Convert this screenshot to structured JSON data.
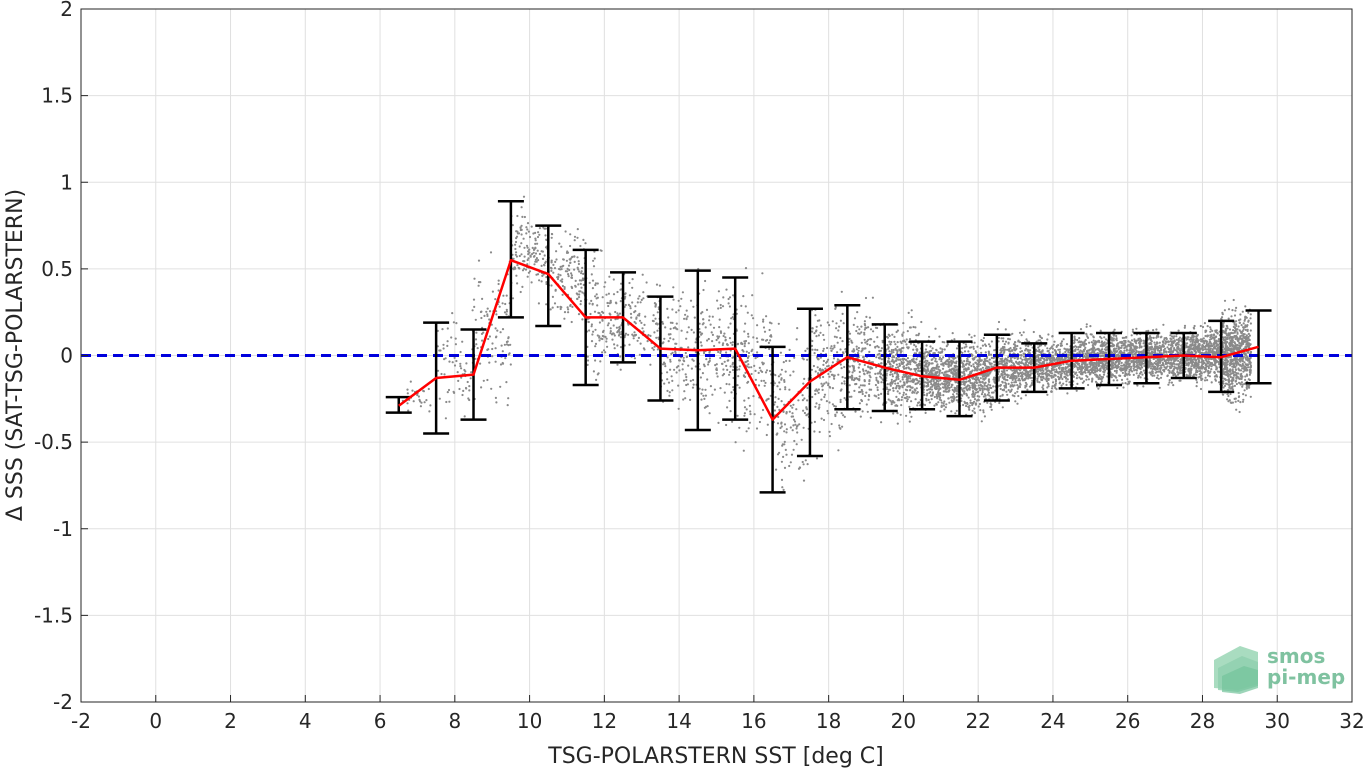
{
  "chart_data": {
    "type": "scatter",
    "xlabel": "TSG-POLARSTERN SST [deg C]",
    "ylabel": "Δ SSS (SAT-TSG-POLARSTERN)",
    "xlim": [
      -2,
      32
    ],
    "ylim": [
      -2,
      2
    ],
    "xticks": [
      -2,
      0,
      2,
      4,
      6,
      8,
      10,
      12,
      14,
      16,
      18,
      20,
      22,
      24,
      26,
      28,
      30,
      32
    ],
    "yticks": [
      -2,
      -1.5,
      -1,
      -0.5,
      0,
      0.5,
      1,
      1.5,
      2
    ],
    "grid": true,
    "reference_line": {
      "y": 0,
      "color": "#0000dd",
      "style": "dashed"
    },
    "series": [
      {
        "kind": "binned-mean-with-errorbars",
        "color": "#ff0000",
        "x": [
          6.5,
          7.5,
          8.5,
          9.5,
          10.5,
          11.5,
          12.5,
          13.5,
          14.5,
          15.5,
          16.5,
          17.5,
          18.5,
          19.5,
          20.5,
          21.5,
          22.5,
          23.5,
          24.5,
          25.5,
          26.5,
          27.5,
          28.5,
          29.5
        ],
        "y": [
          -0.29,
          -0.13,
          -0.11,
          0.55,
          0.47,
          0.22,
          0.22,
          0.04,
          0.03,
          0.04,
          -0.37,
          -0.15,
          -0.01,
          -0.07,
          -0.12,
          -0.14,
          -0.07,
          -0.07,
          -0.03,
          -0.02,
          -0.01,
          0.0,
          -0.01,
          0.05
        ],
        "err_low": [
          -0.33,
          -0.45,
          -0.37,
          0.22,
          0.17,
          -0.17,
          -0.04,
          -0.26,
          -0.43,
          -0.37,
          -0.79,
          -0.58,
          -0.31,
          -0.32,
          -0.31,
          -0.35,
          -0.26,
          -0.21,
          -0.19,
          -0.17,
          -0.16,
          -0.13,
          -0.21,
          -0.16
        ],
        "err_high": [
          -0.24,
          0.19,
          0.15,
          0.89,
          0.75,
          0.61,
          0.48,
          0.34,
          0.49,
          0.45,
          0.05,
          0.27,
          0.29,
          0.18,
          0.08,
          0.08,
          0.12,
          0.07,
          0.13,
          0.13,
          0.13,
          0.13,
          0.2,
          0.26
        ]
      }
    ],
    "scatter_color": "#8a8a8a",
    "scatter_density": [
      {
        "x": [
          6.5,
          7.5
        ],
        "center": -0.25,
        "spread": 0.08,
        "count": 25
      },
      {
        "x": [
          7.5,
          8.5
        ],
        "center": -0.05,
        "spread": 0.25,
        "count": 70
      },
      {
        "x": [
          8.5,
          9.5
        ],
        "center": 0.15,
        "spread": 0.35,
        "count": 110
      },
      {
        "x": [
          9.5,
          10.5
        ],
        "center": 0.6,
        "spread": 0.22,
        "count": 150
      },
      {
        "x": [
          10.5,
          11.5
        ],
        "center": 0.45,
        "spread": 0.22,
        "count": 150
      },
      {
        "x": [
          11.5,
          12.5
        ],
        "center": 0.2,
        "spread": 0.3,
        "count": 150
      },
      {
        "x": [
          12.5,
          13.5
        ],
        "center": 0.2,
        "spread": 0.2,
        "count": 110
      },
      {
        "x": [
          13.5,
          14.5
        ],
        "center": 0.05,
        "spread": 0.28,
        "count": 130
      },
      {
        "x": [
          14.5,
          15.5
        ],
        "center": 0.03,
        "spread": 0.38,
        "count": 170
      },
      {
        "x": [
          15.5,
          16.5
        ],
        "center": -0.05,
        "spread": 0.35,
        "count": 150
      },
      {
        "x": [
          16.5,
          17.5
        ],
        "center": -0.3,
        "spread": 0.35,
        "count": 150
      },
      {
        "x": [
          17.5,
          18.5
        ],
        "center": -0.1,
        "spread": 0.35,
        "count": 190
      },
      {
        "x": [
          18.5,
          19.5
        ],
        "center": -0.05,
        "spread": 0.25,
        "count": 260
      },
      {
        "x": [
          19.5,
          20.5
        ],
        "center": -0.08,
        "spread": 0.22,
        "count": 420
      },
      {
        "x": [
          20.5,
          21.5
        ],
        "center": -0.12,
        "spread": 0.17,
        "count": 520
      },
      {
        "x": [
          21.5,
          22.5
        ],
        "center": -0.12,
        "spread": 0.18,
        "count": 460
      },
      {
        "x": [
          22.5,
          23.5
        ],
        "center": -0.06,
        "spread": 0.16,
        "count": 480
      },
      {
        "x": [
          23.5,
          24.5
        ],
        "center": -0.05,
        "spread": 0.13,
        "count": 480
      },
      {
        "x": [
          24.5,
          25.5
        ],
        "center": -0.02,
        "spread": 0.13,
        "count": 520
      },
      {
        "x": [
          25.5,
          26.5
        ],
        "center": -0.01,
        "spread": 0.13,
        "count": 520
      },
      {
        "x": [
          26.5,
          27.5
        ],
        "center": 0.0,
        "spread": 0.12,
        "count": 520
      },
      {
        "x": [
          27.5,
          28.5
        ],
        "center": 0.01,
        "spread": 0.14,
        "count": 650
      },
      {
        "x": [
          28.5,
          29.3
        ],
        "center": 0.0,
        "spread": 0.22,
        "count": 750
      }
    ]
  },
  "logo": {
    "line1": "smos",
    "line2": "pi-mep"
  }
}
